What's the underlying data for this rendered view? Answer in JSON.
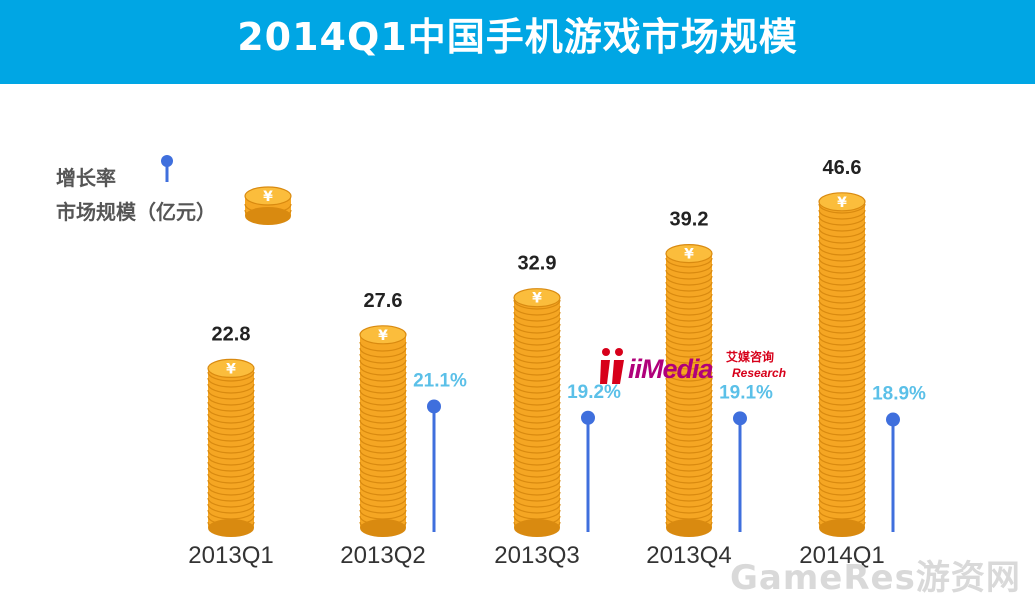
{
  "header": {
    "title": "2014Q1中国手机游戏市场规模"
  },
  "legend": {
    "rate_label": "增长率",
    "size_label": "市场规模（亿元）"
  },
  "chart_data": {
    "type": "bar",
    "title": "2014Q1中国手机游戏市场规模",
    "categories": [
      "2013Q1",
      "2013Q2",
      "2013Q3",
      "2013Q4",
      "2014Q1"
    ],
    "series": [
      {
        "name": "市场规模（亿元）",
        "values": [
          22.8,
          27.6,
          32.9,
          39.2,
          46.6
        ]
      },
      {
        "name": "增长率",
        "values": [
          null,
          21.1,
          19.2,
          19.1,
          18.9
        ]
      }
    ],
    "value_labels": [
      "22.8",
      "27.6",
      "32.9",
      "39.2",
      "46.6"
    ],
    "rate_labels": [
      "",
      "21.1%",
      "19.2%",
      "19.1%",
      "18.9%"
    ],
    "ylim": [
      0,
      50
    ],
    "rate_lim": [
      0,
      25
    ],
    "grid": false,
    "legend": "top-left",
    "colors": {
      "coin": "#f5a623",
      "coin_dark": "#d98a10",
      "rate": "#3f6fdd",
      "rate_text": "#5bc0e8"
    }
  },
  "logo": {
    "main": "iiMedia",
    "cn": "艾媒咨询",
    "en": "Research"
  },
  "watermark": "GameRes游资网"
}
